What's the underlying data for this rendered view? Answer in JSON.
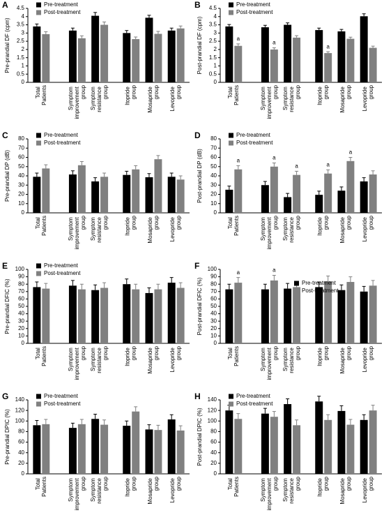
{
  "chart_data": [
    {
      "type": "bar",
      "panel": "A",
      "ylabel": "Pre-prandial DF (cpm)",
      "legend": "upper left",
      "categories": [
        "Total Patients",
        "Symptom improvement group",
        "Symptom resistance group",
        "Itopride group",
        "Mosapride group",
        "Levopride group"
      ],
      "ylim": [
        0,
        4.5
      ],
      "yticks": [
        0,
        0.5,
        1,
        1.5,
        2,
        2.5,
        3,
        3.5,
        4,
        4.5
      ],
      "series": [
        {
          "name": "Pre-treatment",
          "color": "#000000",
          "values": [
            3.4,
            3.15,
            4.05,
            3.0,
            3.93,
            3.15
          ],
          "errors": [
            0.15,
            0.15,
            0.2,
            0.15,
            0.15,
            0.15
          ]
        },
        {
          "name": "Post-treatment",
          "color": "#808080",
          "values": [
            2.93,
            2.68,
            3.5,
            2.63,
            2.95,
            3.28
          ],
          "errors": [
            0.15,
            0.15,
            0.17,
            0.13,
            0.15,
            0.15
          ]
        }
      ],
      "annotations": []
    },
    {
      "type": "bar",
      "panel": "B",
      "ylabel": "Post-prandial DF (cpm)",
      "legend": "upper left",
      "categories": [
        "Total Patients",
        "Symptom improvement group",
        "Symptom resistance group",
        "Itopride group",
        "Mosapride group",
        "Levopride group"
      ],
      "ylim": [
        0,
        4.5
      ],
      "yticks": [
        0,
        0.5,
        1,
        1.5,
        2,
        2.5,
        3,
        3.5,
        4,
        4.5
      ],
      "series": [
        {
          "name": "Pre-treatment",
          "color": "#000000",
          "values": [
            3.4,
            3.35,
            3.5,
            3.18,
            3.1,
            4.02
          ],
          "errors": [
            0.12,
            0.12,
            0.12,
            0.12,
            0.12,
            0.15
          ]
        },
        {
          "name": "Post-treatment",
          "color": "#808080",
          "values": [
            2.22,
            2.0,
            2.72,
            1.78,
            2.65,
            2.1
          ],
          "errors": [
            0.12,
            0.1,
            0.12,
            0.08,
            0.1,
            0.1
          ]
        }
      ],
      "annotations": [
        {
          "text": "a",
          "series": "Post-treatment",
          "category": "Total Patients"
        },
        {
          "text": "a",
          "series": "Post-treatment",
          "category": "Symptom improvement group"
        },
        {
          "text": "a",
          "series": "Post-treatment",
          "category": "Itopride group"
        }
      ]
    },
    {
      "type": "bar",
      "panel": "C",
      "ylabel": "Pre-prandial DP (dB)",
      "legend": "upper left",
      "categories": [
        "Total Patients",
        "Symptom improvement group",
        "Symptom resistance group",
        "Itopride group",
        "Mosapride group",
        "Levopride group"
      ],
      "ylim": [
        0,
        80
      ],
      "yticks": [
        0,
        10,
        20,
        30,
        40,
        50,
        60,
        70,
        80
      ],
      "series": [
        {
          "name": "Pre-treatment",
          "color": "#000000",
          "values": [
            39,
            41.5,
            34,
            41,
            38.5,
            39
          ],
          "errors": [
            4,
            4,
            4,
            4,
            4,
            4
          ]
        },
        {
          "name": "Post-treatment",
          "color": "#808080",
          "values": [
            48,
            51.5,
            39,
            47,
            58,
            36
          ],
          "errors": [
            4,
            4,
            4,
            4,
            4,
            4
          ]
        }
      ],
      "annotations": []
    },
    {
      "type": "bar",
      "panel": "D",
      "ylabel": "Post-prandial DP (dB)",
      "legend": "upper left",
      "categories": [
        "Total Patients",
        "Symptom improvement group",
        "Symptom resistance group",
        "Itopride group",
        "Mosapride group",
        "Levopride group"
      ],
      "ylim": [
        0,
        80
      ],
      "yticks": [
        0,
        10,
        20,
        30,
        40,
        50,
        60,
        70,
        80
      ],
      "series": [
        {
          "name": "Pre-treatment",
          "color": "#000000",
          "values": [
            25,
            30,
            17,
            19.5,
            24,
            34
          ],
          "errors": [
            4,
            4,
            4,
            4,
            4,
            4
          ]
        },
        {
          "name": "Post-treatment",
          "color": "#808080",
          "values": [
            47,
            50,
            41,
            42.5,
            56,
            41.5
          ],
          "errors": [
            4,
            4,
            4,
            4,
            4,
            4
          ]
        }
      ],
      "annotations": [
        {
          "text": "a",
          "series": "Post-treatment",
          "category": "Total Patients"
        },
        {
          "text": "a",
          "series": "Post-treatment",
          "category": "Symptom improvement group"
        },
        {
          "text": "a",
          "series": "Post-treatment",
          "category": "Symptom resistance group"
        },
        {
          "text": "a",
          "series": "Post-treatment",
          "category": "Itopride group"
        },
        {
          "text": "a",
          "series": "Post-treatment",
          "category": "Mosapride group"
        }
      ]
    },
    {
      "type": "bar",
      "panel": "E",
      "ylabel": "Pre-prandial DFIC (%)",
      "legend": "upper left",
      "categories": [
        "Total Patients",
        "Symptom improvement group",
        "Symptom resistance group",
        "Itopride group",
        "Mosapride group",
        "Levopride group"
      ],
      "ylim": [
        0,
        100
      ],
      "yticks": [
        0,
        10,
        20,
        30,
        40,
        50,
        60,
        70,
        80,
        90,
        100
      ],
      "series": [
        {
          "name": "Pre-treatment",
          "color": "#000000",
          "values": [
            76,
            78,
            72,
            80,
            68,
            82
          ],
          "errors": [
            7,
            7,
            7,
            7,
            7,
            7
          ]
        },
        {
          "name": "Post-treatment",
          "color": "#808080",
          "values": [
            74,
            73,
            75,
            73,
            73,
            75
          ],
          "errors": [
            7,
            7,
            7,
            7,
            7,
            7
          ]
        }
      ],
      "annotations": []
    },
    {
      "type": "bar",
      "panel": "F",
      "ylabel": "Post-prandial DFIC (%)",
      "legend": "upper center",
      "categories": [
        "Total Patients",
        "Symptom improvement group",
        "Symptom resistance group",
        "Itopride group",
        "Mosapride group",
        "Levopride group"
      ],
      "ylim": [
        0,
        100
      ],
      "yticks": [
        0,
        10,
        20,
        30,
        40,
        50,
        60,
        70,
        80,
        90,
        100
      ],
      "series": [
        {
          "name": "Pre-treatment",
          "color": "#000000",
          "values": [
            73,
            73,
            74,
            76,
            72,
            70
          ],
          "errors": [
            7,
            7,
            7,
            7,
            7,
            7
          ]
        },
        {
          "name": "Post-treatment",
          "color": "#808080",
          "values": [
            82,
            85,
            76,
            84,
            83,
            78
          ],
          "errors": [
            7,
            7,
            7,
            7,
            7,
            7
          ]
        }
      ],
      "annotations": [
        {
          "text": "a",
          "series": "Post-treatment",
          "category": "Total Patients"
        },
        {
          "text": "a",
          "series": "Post-treatment",
          "category": "Symptom improvement group"
        }
      ]
    },
    {
      "type": "bar",
      "panel": "G",
      "ylabel": "Pre-prandial DPIC (%)",
      "legend": "upper left",
      "categories": [
        "Total Patients",
        "Symptom improvement group",
        "Symptom resistance group",
        "Itopride group",
        "Mosapride group",
        "Levopride group"
      ],
      "ylim": [
        0,
        140
      ],
      "yticks": [
        0,
        20,
        40,
        60,
        80,
        100,
        120,
        140
      ],
      "series": [
        {
          "name": "Pre-treatment",
          "color": "#000000",
          "values": [
            92,
            87,
            104,
            91,
            84,
            103
          ],
          "errors": [
            9,
            9,
            9,
            9,
            9,
            9
          ]
        },
        {
          "name": "Post-treatment",
          "color": "#808080",
          "values": [
            94,
            94,
            93,
            118,
            83,
            82
          ],
          "errors": [
            9,
            9,
            9,
            9,
            9,
            9
          ]
        }
      ],
      "annotations": []
    },
    {
      "type": "bar",
      "panel": "H",
      "ylabel": "Post-prandial DPIC (%)",
      "legend": "upper left",
      "categories": [
        "Total Patients",
        "Symptom improvement group",
        "Symptom resistance group",
        "Itopride group",
        "Mosapride group",
        "Levopride group"
      ],
      "ylim": [
        0,
        140
      ],
      "yticks": [
        0,
        20,
        40,
        60,
        80,
        100,
        120,
        140
      ],
      "series": [
        {
          "name": "Pre-treatment",
          "color": "#000000",
          "values": [
            120,
            114,
            132,
            137,
            119,
            102
          ],
          "errors": [
            10,
            10,
            10,
            10,
            10,
            10
          ]
        },
        {
          "name": "Post-treatment",
          "color": "#808080",
          "values": [
            104,
            108,
            92,
            102,
            93,
            120
          ],
          "errors": [
            10,
            10,
            10,
            10,
            10,
            10
          ]
        }
      ],
      "annotations": []
    }
  ]
}
